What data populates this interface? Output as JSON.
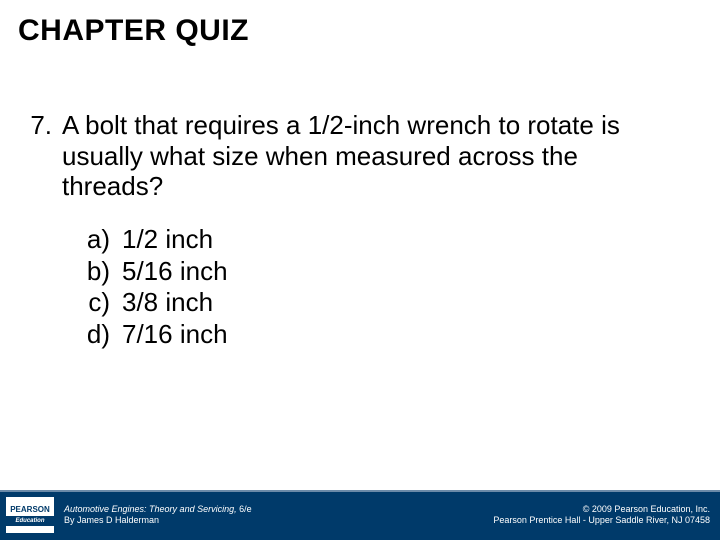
{
  "title": "CHAPTER QUIZ",
  "question": {
    "number": "7.",
    "text": "A bolt that requires a 1/2-inch wrench to rotate is usually what size when measured across the threads?"
  },
  "options": [
    {
      "letter": "a)",
      "text": "1/2 inch"
    },
    {
      "letter": "b)",
      "text": "5/16 inch"
    },
    {
      "letter": "c)",
      "text": "3/8 inch"
    },
    {
      "letter": "d)",
      "text": "7/16 inch"
    }
  ],
  "footer": {
    "logo_brand": "PEARSON",
    "logo_sub": "Education",
    "book_title": "Automotive Engines: Theory and Servicing,",
    "edition": " 6/e",
    "author": "By James D Halderman",
    "copyright": "© 2009 Pearson Education, Inc.",
    "publisher": "Pearson Prentice Hall - Upper Saddle River, NJ 07458"
  },
  "colors": {
    "footer_bg": "#003a6a",
    "footer_text": "#ffffff",
    "body_bg": "#ffffff",
    "body_text": "#000000"
  }
}
